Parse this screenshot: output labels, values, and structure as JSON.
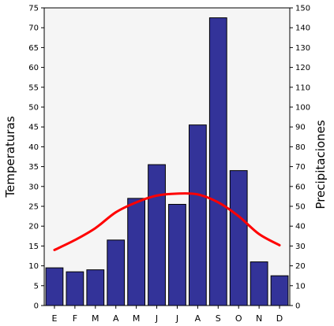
{
  "chart_data": {
    "type": "bar",
    "categories": [
      "E",
      "F",
      "M",
      "A",
      "M",
      "J",
      "J",
      "A",
      "S",
      "O",
      "N",
      "D"
    ],
    "series": [
      {
        "kind": "bar",
        "axis": "right",
        "color": "#333399",
        "values": [
          19,
          17,
          18,
          33,
          54,
          71,
          51,
          91,
          145,
          68,
          22,
          15
        ]
      },
      {
        "kind": "line",
        "axis": "left",
        "color": "#ff0000",
        "values": [
          14,
          16.5,
          19.5,
          23.5,
          26,
          27.7,
          28.2,
          28,
          26,
          22.5,
          18,
          15.2
        ]
      }
    ],
    "ylabel": "Temperaturas",
    "y2label": "Precipitaciones",
    "ylim": [
      0,
      75
    ],
    "y2lim": [
      0,
      150
    ],
    "yticks": [
      0,
      5,
      10,
      15,
      20,
      25,
      30,
      35,
      40,
      45,
      50,
      55,
      60,
      65,
      70,
      75
    ],
    "y2ticks": [
      0,
      10,
      20,
      30,
      40,
      50,
      60,
      70,
      80,
      90,
      100,
      110,
      120,
      130,
      140,
      150
    ],
    "grid": false,
    "legend": "none",
    "background": "#f5f5f5",
    "frame_color": "#000000"
  }
}
